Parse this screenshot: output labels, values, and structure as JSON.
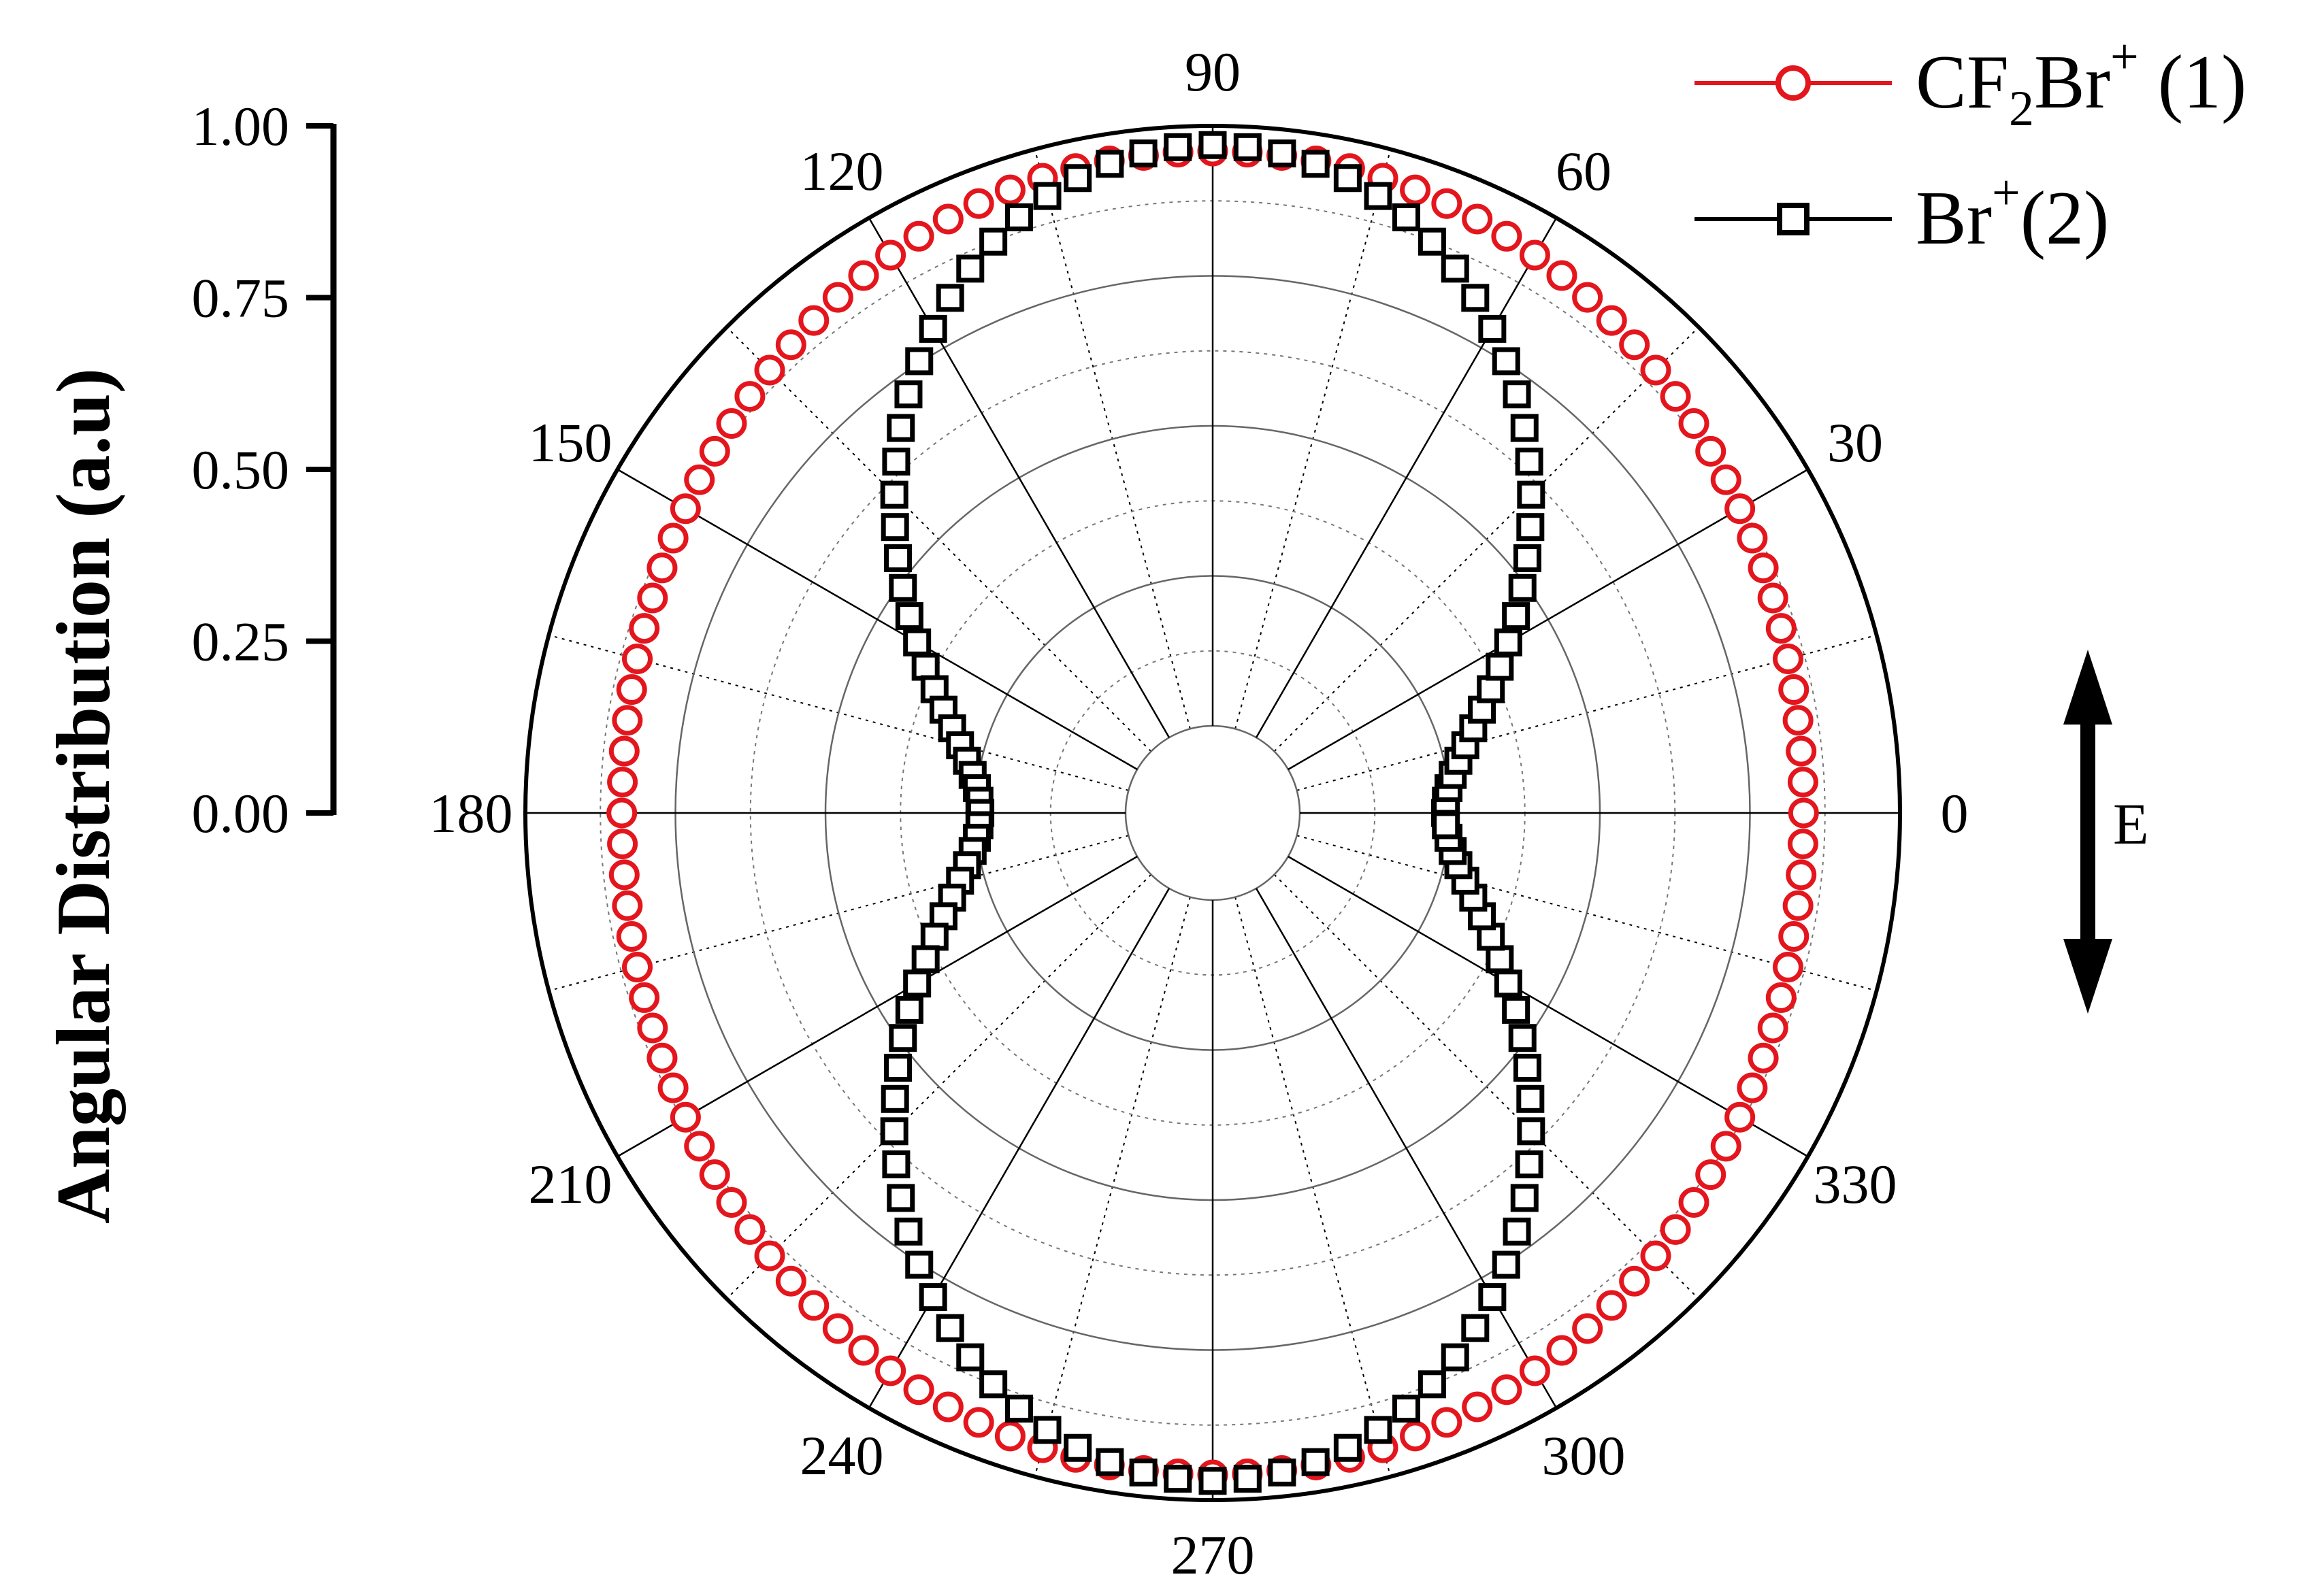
{
  "chart_data": {
    "type": "polar-scatter",
    "xlabel": "",
    "ylabel": "Angular Distribution (a.u)",
    "radial_range": [
      0,
      1.0
    ],
    "radial_ticks": [
      "0.00",
      "0.25",
      "0.50",
      "0.75",
      "1.00"
    ],
    "angle_ticks": [
      "0",
      "30",
      "60",
      "90",
      "120",
      "150",
      "180",
      "210",
      "240",
      "270",
      "300",
      "330"
    ],
    "angle_tick_values": [
      0,
      30,
      60,
      90,
      120,
      150,
      180,
      210,
      240,
      270,
      300,
      330
    ],
    "grid": true,
    "legend_position": "top-right",
    "annotation": {
      "label": "E",
      "arrow": "double-headed vertical"
    },
    "sampling_step_deg": 3,
    "series": [
      {
        "name": "CF2Br+ (1)",
        "name_main": "CF",
        "name_sub": "2",
        "name_mid": "Br",
        "name_sup": "+",
        "name_tail": " (1)",
        "color": "#e4161d",
        "marker": "circle",
        "model": {
          "form": "1 + beta * P2(cos(theta - 90))",
          "beta": 0.09,
          "amplitude": 0.958
        }
      },
      {
        "name": "Br+(2)",
        "name_mid": "Br",
        "name_sup": "+",
        "name_tail": "(2)",
        "color": "#000000",
        "marker": "square",
        "model": {
          "form": "1 + beta * P2(cos(theta - 90))",
          "beta": 1.0,
          "amplitude": 0.968
        }
      }
    ]
  }
}
